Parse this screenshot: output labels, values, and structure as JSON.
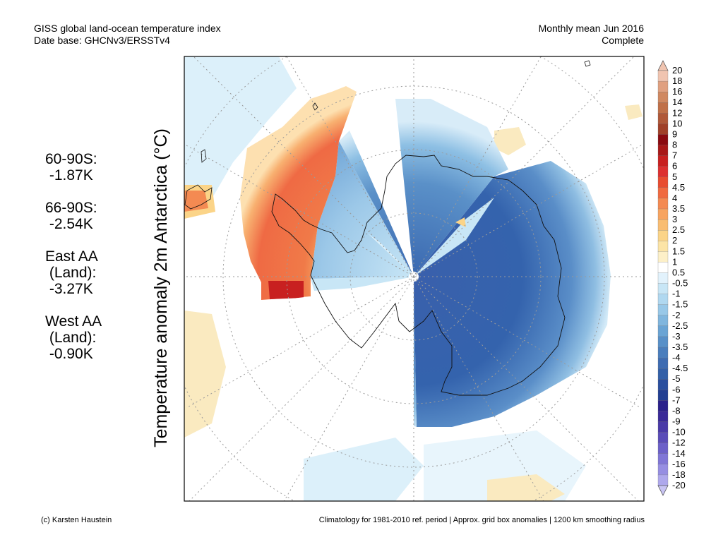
{
  "header": {
    "left_line1": "GISS global land-ocean temperature index",
    "left_line2": "Date base: GHCNv3/ERSSTv4",
    "right_line1": "Monthly mean Jun 2016",
    "right_line2": "Complete"
  },
  "stats": [
    {
      "lines": [
        "60-90S:",
        " -1.87K"
      ]
    },
    {
      "lines": [
        "66-90S:",
        " -2.54K"
      ]
    },
    {
      "lines": [
        "East AA",
        " (Land):",
        " -3.27K"
      ]
    },
    {
      "lines": [
        "West AA",
        " (Land):",
        " -0.90K"
      ]
    }
  ],
  "axis_title": "Temperature anomaly 2m Antarctica (°C)",
  "footer": {
    "left": "(c) Karsten Haustein",
    "right": "Climatology for 1981-2010 ref. period | Approx. grid box anomalies | 1200 km smoothing radius"
  },
  "colorbar": {
    "labels": [
      "20",
      "18",
      "16",
      "14",
      "12",
      "10",
      "9",
      "8",
      "7",
      "6",
      "5",
      "4.5",
      "4",
      "3.5",
      "3",
      "2.5",
      "2",
      "1.5",
      "1",
      "0.5",
      "-0.5",
      "-1",
      "-1.5",
      "-2",
      "-2.5",
      "-3",
      "-3.5",
      "-4",
      "-4.5",
      "-5",
      "-6",
      "-7",
      "-8",
      "-9",
      "-10",
      "-12",
      "-14",
      "-16",
      "-18",
      "-20"
    ],
    "colors": [
      "#f0c4b0",
      "#e0a080",
      "#d08860",
      "#c07048",
      "#b05838",
      "#a04028",
      "#8a0a10",
      "#a81818",
      "#c82020",
      "#dd3030",
      "#e84c30",
      "#f06a40",
      "#f48a52",
      "#f7a460",
      "#f9bd72",
      "#fbd488",
      "#fce4a6",
      "#fdf0c8",
      "#ffffff",
      "#e2f2fc",
      "#c8e6f6",
      "#b0d8f0",
      "#98c8e8",
      "#80b6de",
      "#6aa4d4",
      "#5890c8",
      "#4a7ebd",
      "#3e6cb2",
      "#3360a8",
      "#2a4f9e",
      "#223f92",
      "#2a208a",
      "#3a2a98",
      "#4a3aa8",
      "#5a4cb8",
      "#6c60c8",
      "#8076d6",
      "#968ee2",
      "#aea8ec"
    ]
  },
  "map": {
    "region": "Antarctica",
    "month": "Jun 2016"
  }
}
